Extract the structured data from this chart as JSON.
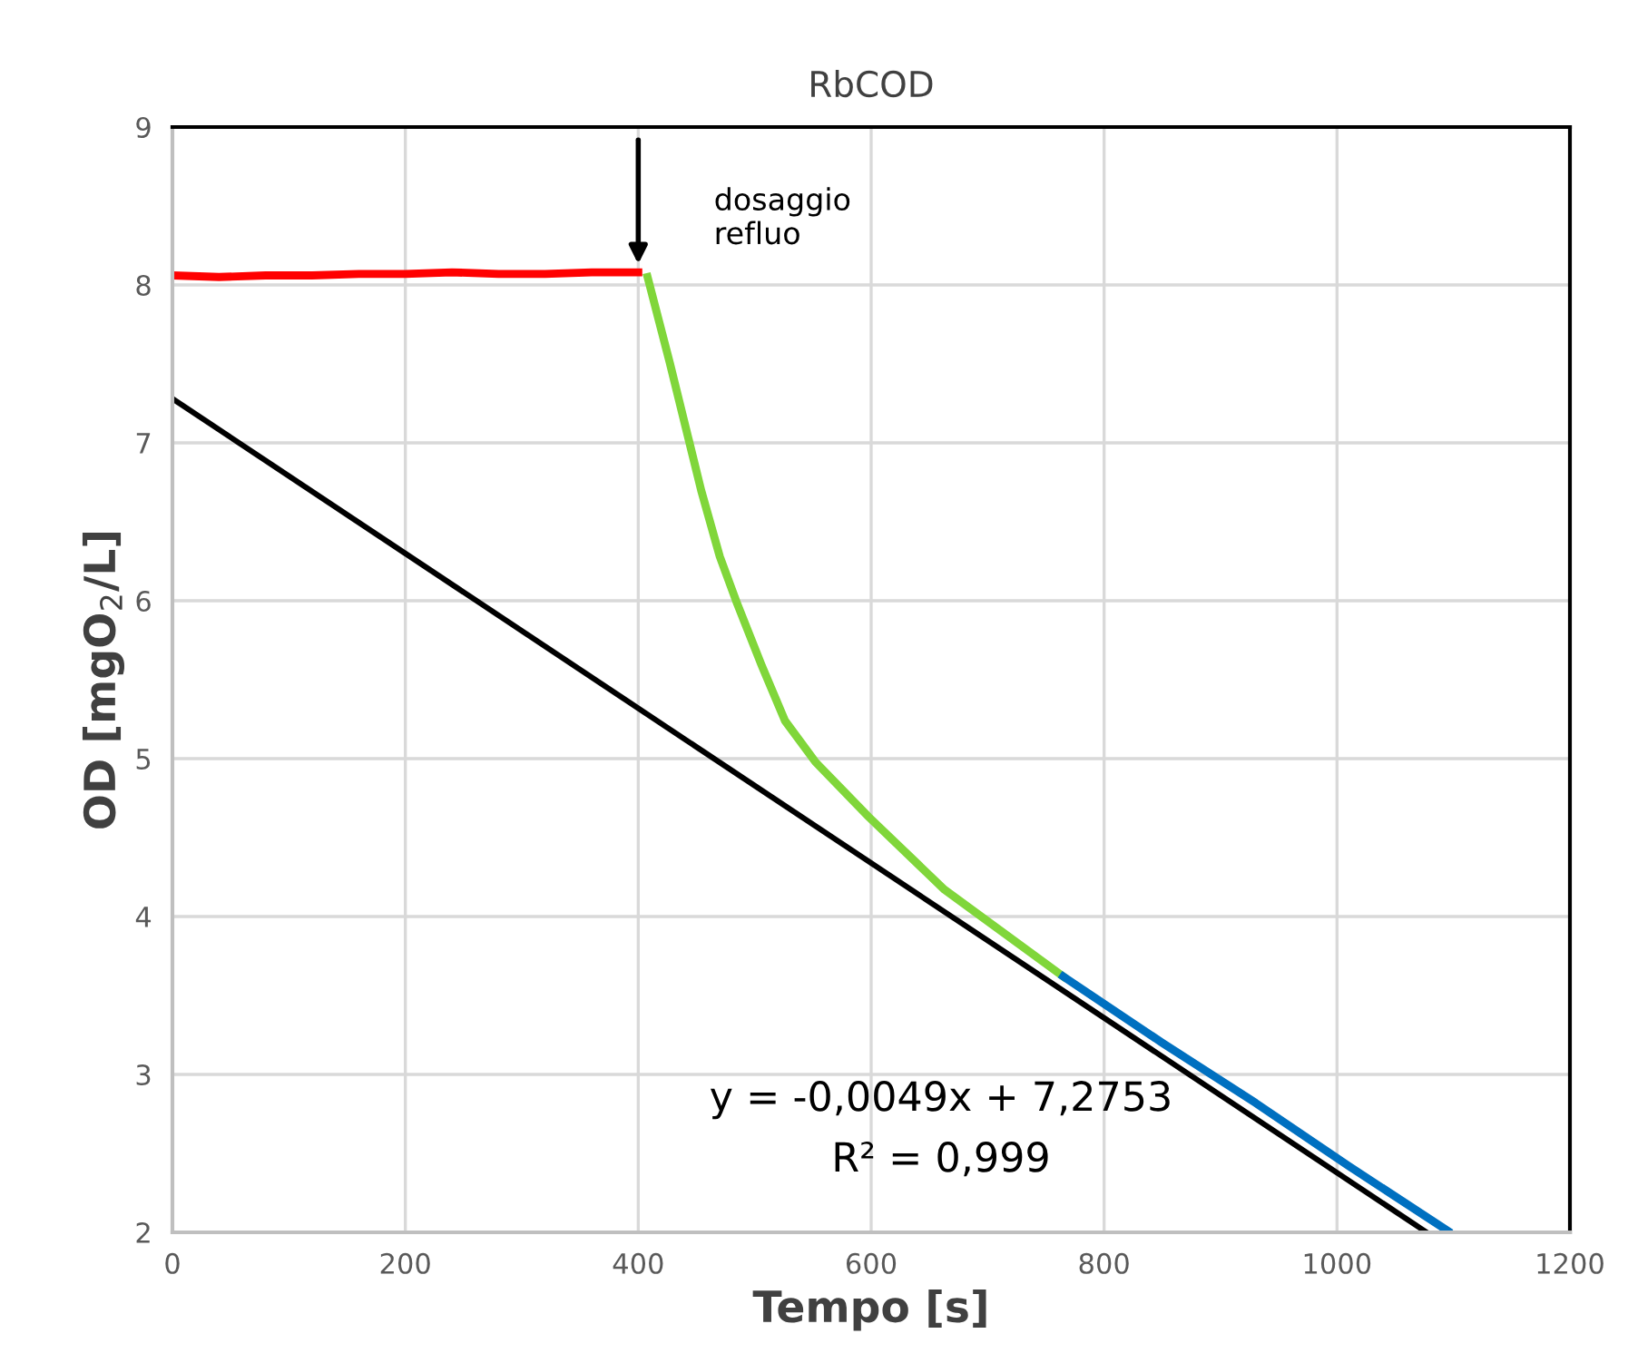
{
  "chart_data": {
    "type": "line",
    "title": "RbCOD",
    "xlabel": "Tempo [s]",
    "ylabel": "OD [mgO$_{2}$/L]",
    "xlim": [
      0,
      1200
    ],
    "xticks": [
      0,
      200,
      400,
      600,
      800,
      1000,
      1200
    ],
    "ylim": [
      2,
      9
    ],
    "yticks": [
      2,
      3,
      4,
      5,
      6,
      7,
      8,
      9
    ],
    "grid": true,
    "legend": false,
    "marker": "none",
    "line_style": "solid",
    "series": [
      {
        "color": "#ff0000",
        "x": [
          0,
          40,
          80,
          120,
          160,
          200,
          240,
          280,
          320,
          360,
          400
        ],
        "values": [
          8.06,
          8.05,
          8.06,
          8.06,
          8.07,
          8.07,
          8.08,
          8.07,
          8.07,
          8.08,
          8.08
        ]
      },
      {
        "color": "#80d63a",
        "x": [
          408,
          427,
          454,
          470,
          485,
          506,
          526,
          552,
          598,
          663,
          765
        ],
        "values": [
          8.05,
          7.51,
          6.7,
          6.28,
          5.98,
          5.59,
          5.24,
          4.98,
          4.63,
          4.17,
          3.62
        ]
      },
      {
        "color": "#0070c0",
        "x": [
          765,
          850,
          930,
          1010,
          1095
        ],
        "values": [
          3.62,
          3.2,
          2.82,
          2.42,
          2.01
        ]
      },
      {
        "color": "#000000",
        "x": [
          0,
          1077
        ],
        "values": [
          7.28,
          2.0
        ]
      }
    ],
    "annotations": [
      {
        "text": "dosaggio\nrefluo",
        "x": 400,
        "y": 8.1
      },
      "y = -0,0049x + 7,2753",
      "R² = 0,999"
    ]
  }
}
